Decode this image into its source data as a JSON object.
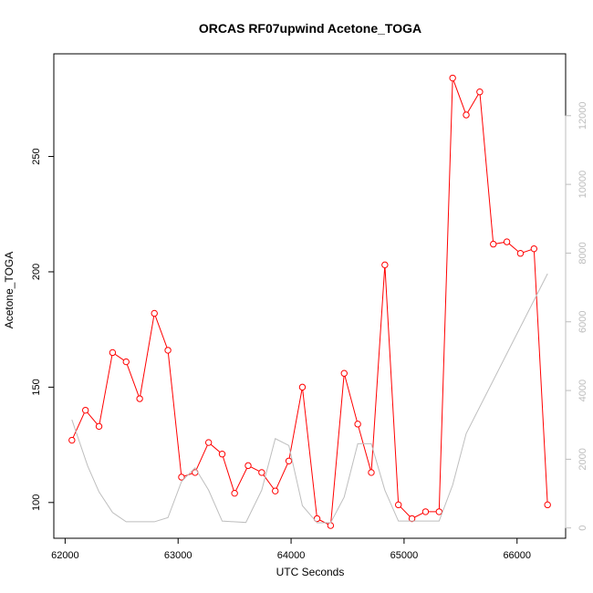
{
  "chart_data": {
    "type": "line",
    "title": "ORCAS RF07upwind Acetone_TOGA",
    "xlabel": "UTC Seconds",
    "ylabel": "Acetone_TOGA",
    "xlim": [
      61900,
      66430
    ],
    "ylim": [
      84.5,
      294.5
    ],
    "y2lim": [
      -300,
      13800
    ],
    "x_ticks": [
      62000,
      63000,
      64000,
      65000,
      66000
    ],
    "y_ticks": [
      100,
      150,
      200,
      250
    ],
    "y2_ticks": [
      0,
      2000,
      4000,
      6000,
      8000,
      10000,
      12000
    ],
    "grid": false,
    "legend": "none",
    "colors": {
      "primary": "#ff0000",
      "secondary": "#bebebe",
      "axis": "#000000",
      "right_axis": "#bdbdbd"
    },
    "series": [
      {
        "axis": "left",
        "marker": "open-circle",
        "x": [
          62060,
          62180,
          62300,
          62420,
          62540,
          62660,
          62790,
          62910,
          63030,
          63150,
          63270,
          63390,
          63500,
          63620,
          63740,
          63860,
          63980,
          64100,
          64230,
          64350,
          64470,
          64590,
          64710,
          64830,
          64950,
          65070,
          65190,
          65310,
          65430,
          65550,
          65670,
          65790,
          65910,
          66030,
          66150,
          66270
        ],
        "values": [
          127,
          140,
          133,
          165,
          161,
          145,
          182,
          166,
          111,
          113,
          126,
          121,
          104,
          116,
          113,
          105,
          118,
          150,
          93,
          90,
          156,
          134,
          113,
          203,
          99,
          93,
          96,
          96,
          284,
          268,
          278,
          212,
          213,
          208,
          210,
          99
        ]
      },
      {
        "axis": "right",
        "marker": "none",
        "x": [
          62060,
          62200,
          62300,
          62420,
          62540,
          62660,
          62790,
          62910,
          63030,
          63150,
          63270,
          63390,
          63600,
          63740,
          63860,
          63980,
          64100,
          64230,
          64350,
          64470,
          64590,
          64710,
          64830,
          64950,
          65070,
          65190,
          65310,
          65430,
          65550,
          66270
        ],
        "values": [
          3150,
          1800,
          1050,
          450,
          180,
          180,
          180,
          300,
          1350,
          1750,
          1100,
          200,
          160,
          1100,
          2600,
          2400,
          650,
          150,
          150,
          900,
          2450,
          2450,
          1100,
          200,
          200,
          200,
          200,
          1250,
          2750,
          7400
        ]
      }
    ]
  }
}
